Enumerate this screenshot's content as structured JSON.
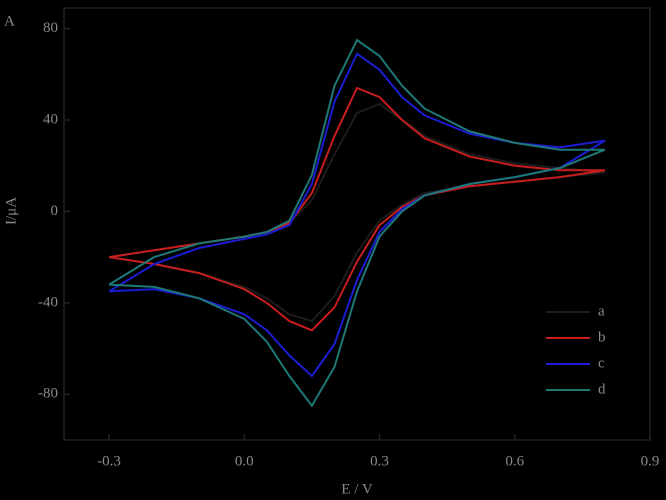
{
  "chart_data": {
    "type": "line",
    "panel_label": "A",
    "x_label": "E / V",
    "y_label": "I/μA",
    "xlim": [
      -0.4,
      0.9
    ],
    "ylim": [
      -100,
      89
    ],
    "xticks": [
      -0.3,
      {
        "value": 0,
        "label": "0.0"
      },
      0.3,
      0.6,
      0.9
    ],
    "yticks": [
      80,
      40,
      0,
      -40,
      -80
    ],
    "legend": "lower right",
    "series": [
      {
        "name": "a",
        "color": "#1c1c1c",
        "x": [
          -0.3,
          -0.2,
          -0.1,
          0,
          0.05,
          0.1,
          0.15,
          0.2,
          0.25,
          0.3,
          0.35,
          0.4,
          0.5,
          0.6,
          0.7,
          0.8,
          0.7,
          0.6,
          0.5,
          0.4,
          0.35,
          0.3,
          0.25,
          0.2,
          0.15,
          0.1,
          0.05,
          0,
          -0.1,
          -0.2,
          -0.3
        ],
        "values": [
          -20,
          -17,
          -14,
          -11,
          -9,
          -5,
          5,
          25,
          43,
          47,
          40,
          33,
          25,
          21,
          19,
          17,
          15,
          13,
          11,
          8,
          3,
          -4,
          -18,
          -37,
          -48,
          -45,
          -38,
          -33,
          -27,
          -23,
          -20
        ]
      },
      {
        "name": "b",
        "color": "#c81e1e",
        "x": [
          -0.3,
          -0.2,
          -0.1,
          0,
          0.05,
          0.1,
          0.15,
          0.2,
          0.25,
          0.3,
          0.35,
          0.4,
          0.5,
          0.6,
          0.7,
          0.8,
          0.7,
          0.6,
          0.5,
          0.4,
          0.35,
          0.3,
          0.25,
          0.2,
          0.15,
          0.1,
          0.05,
          0,
          -0.1,
          -0.2,
          -0.3
        ],
        "values": [
          -20,
          -17,
          -14,
          -11,
          -9,
          -5,
          8,
          33,
          54,
          50,
          40,
          32,
          24,
          20,
          18,
          18,
          15,
          13,
          11,
          7,
          2,
          -6,
          -22,
          -42,
          -52,
          -48,
          -40,
          -34,
          -27,
          -23,
          -20
        ]
      },
      {
        "name": "c",
        "color": "#1c1cd2",
        "x": [
          -0.3,
          -0.2,
          -0.1,
          0,
          0.05,
          0.1,
          0.15,
          0.2,
          0.25,
          0.3,
          0.35,
          0.4,
          0.5,
          0.6,
          0.7,
          0.8,
          0.7,
          0.6,
          0.5,
          0.4,
          0.35,
          0.3,
          0.25,
          0.2,
          0.15,
          0.1,
          0.05,
          0,
          -0.1,
          -0.2,
          -0.3
        ],
        "values": [
          -35,
          -23,
          -16,
          -12,
          -10,
          -6,
          12,
          48,
          69,
          62,
          50,
          42,
          34,
          30,
          28,
          31,
          19,
          15,
          12,
          7,
          1,
          -9,
          -30,
          -58,
          -72,
          -63,
          -52,
          -45,
          -38,
          -34,
          -35
        ]
      },
      {
        "name": "d",
        "color": "#1e7876",
        "x": [
          -0.3,
          -0.2,
          -0.1,
          0,
          0.05,
          0.1,
          0.15,
          0.2,
          0.25,
          0.3,
          0.35,
          0.4,
          0.5,
          0.6,
          0.7,
          0.8,
          0.7,
          0.6,
          0.5,
          0.4,
          0.35,
          0.3,
          0.25,
          0.2,
          0.15,
          0.1,
          0.05,
          0,
          -0.1,
          -0.2,
          -0.3
        ],
        "values": [
          -32,
          -20,
          -14,
          -11,
          -9,
          -4,
          16,
          55,
          75,
          68,
          55,
          45,
          35,
          30,
          27,
          27,
          19,
          15,
          12,
          7,
          0,
          -11,
          -35,
          -68,
          -85,
          -72,
          -57,
          -47,
          -38,
          -33,
          -32
        ]
      }
    ]
  }
}
